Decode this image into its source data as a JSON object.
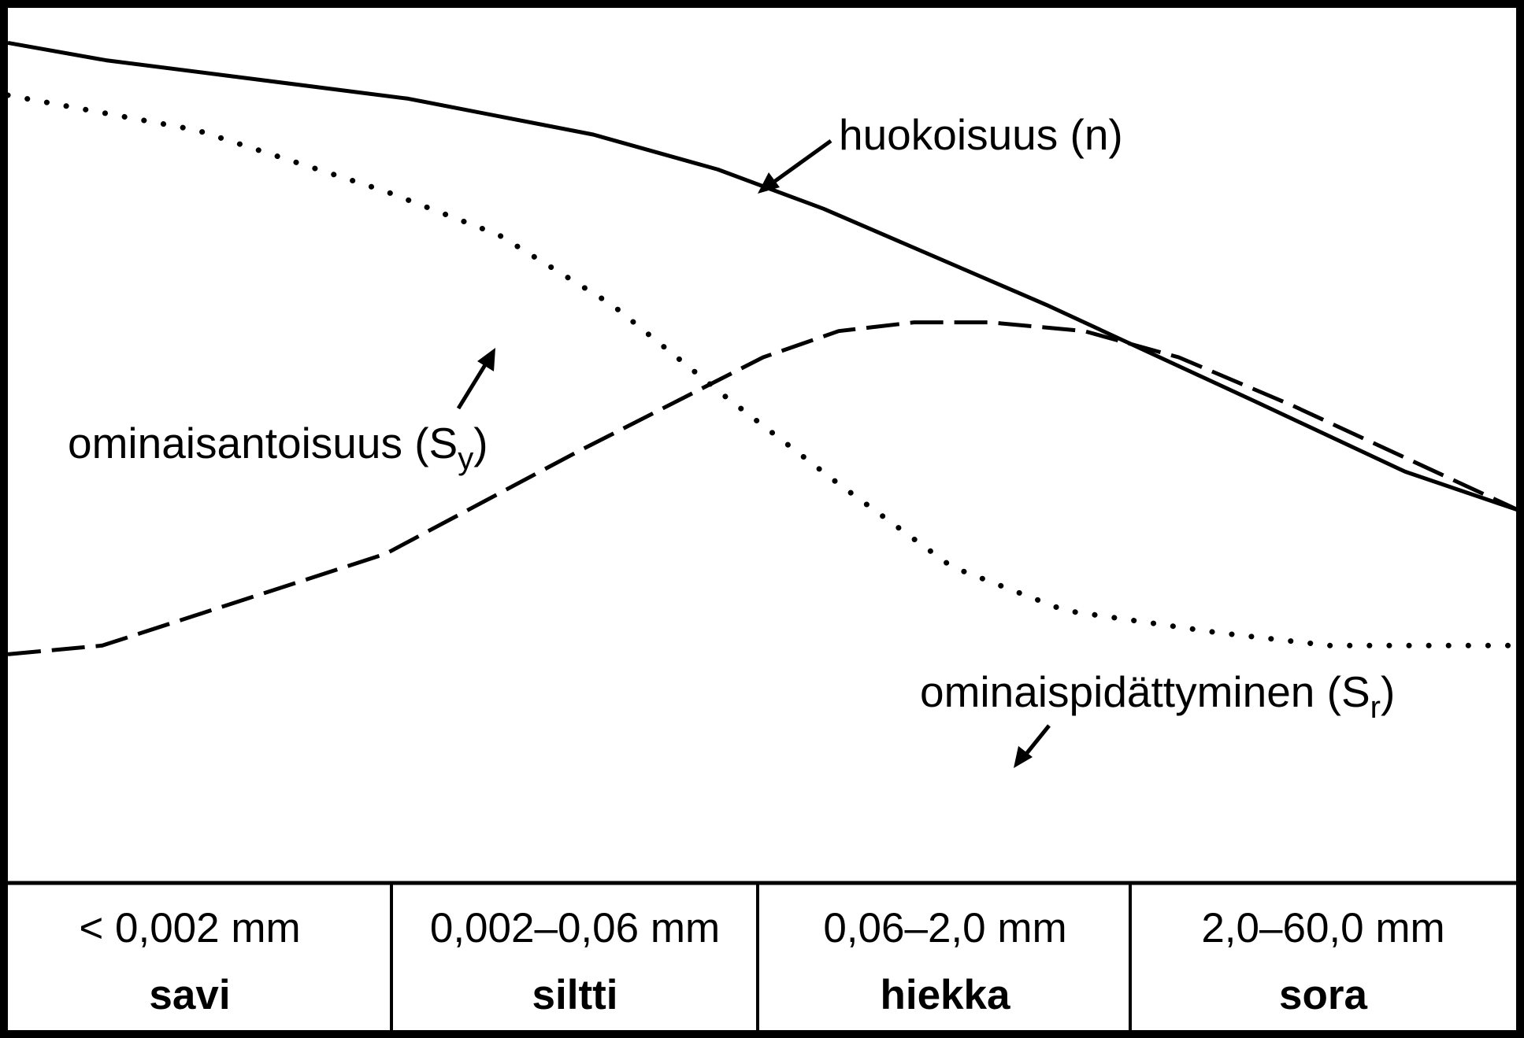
{
  "chart_data": {
    "type": "line",
    "categories": [
      {
        "range": "< 0,002 mm",
        "name": "savi"
      },
      {
        "range": "0,002–0,06 mm",
        "name": "siltti"
      },
      {
        "range": "0,06–2,0 mm",
        "name": "hiekka"
      },
      {
        "range": "2,0–60,0 mm",
        "name": "sora"
      }
    ],
    "x_domain": [
      0,
      4
    ],
    "y_domain": [
      0,
      1
    ],
    "series": [
      {
        "id": "porosity",
        "label_main": "huokoisuus (n)",
        "label_sub": "",
        "label_close": "",
        "style": "solid",
        "x": [
          0.0,
          0.26,
          0.57,
          1.06,
          1.55,
          1.88,
          2.16,
          2.75,
          3.3,
          3.7,
          4.0
        ],
        "y": [
          0.96,
          0.94,
          0.923,
          0.896,
          0.855,
          0.815,
          0.77,
          0.66,
          0.55,
          0.469,
          0.425
        ]
      },
      {
        "id": "specific-yield",
        "label_main": "ominaisantoisuus (S",
        "label_sub": "y",
        "label_close": ")",
        "style": "dotted",
        "x": [
          0.0,
          0.5,
          1.0,
          1.3,
          1.6,
          1.9,
          2.2,
          2.5,
          2.8,
          3.2,
          3.5,
          4.0
        ],
        "y": [
          0.9,
          0.86,
          0.79,
          0.74,
          0.66,
          0.555,
          0.455,
          0.36,
          0.31,
          0.285,
          0.27,
          0.27
        ]
      },
      {
        "id": "specific-retention",
        "label_main": "ominaispidättyminen (S",
        "label_sub": "r",
        "label_close": ")",
        "style": "dashed",
        "x": [
          0.0,
          0.25,
          1.0,
          1.5,
          2.0,
          2.2,
          2.4,
          2.6,
          2.85,
          3.1,
          3.4,
          4.0
        ],
        "y": [
          0.26,
          0.27,
          0.375,
          0.49,
          0.6,
          0.63,
          0.64,
          0.64,
          0.63,
          0.6,
          0.545,
          0.425
        ]
      }
    ]
  }
}
